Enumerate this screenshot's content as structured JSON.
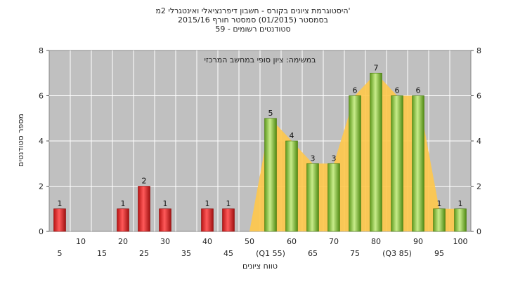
{
  "header": {
    "line1": "היסטוגרמת ציונים בקורס - חשבון דיפרנציאלי ואינטגרלי 2מ'",
    "line2": "בסמסטר  (01/2015)  סמסטר חורף  2015/16",
    "line3": "59 - סטודנטים רשומים"
  },
  "chart_data": {
    "type": "bar",
    "subtitle": "במשימה: ציון סופי במחשב המרכזי",
    "xlabel": "טווח ציונים",
    "ylabel": "מספר סטודנטים",
    "ylim": [
      0,
      8
    ],
    "yticks": [
      0,
      2,
      4,
      6,
      8
    ],
    "grid": true,
    "x_tick_labels_row1": [
      "10",
      "20",
      "30",
      "40",
      "50",
      "60",
      "70",
      "80",
      "90",
      "100"
    ],
    "x_tick_labels_row2": [
      "5",
      "15",
      "25",
      "35",
      "45",
      "(Q1 55)",
      "65",
      "75",
      "(Q3 85)",
      "95"
    ],
    "categories": [
      5,
      10,
      15,
      20,
      25,
      30,
      35,
      40,
      45,
      50,
      55,
      60,
      65,
      70,
      75,
      80,
      85,
      90,
      95,
      100
    ],
    "values": [
      1,
      0,
      0,
      1,
      2,
      1,
      0,
      1,
      1,
      0,
      5,
      4,
      3,
      3,
      6,
      7,
      6,
      6,
      1,
      1
    ],
    "pass_threshold": 55,
    "colors": {
      "fail": "#e02828",
      "pass": "#8dc63f",
      "area": "#ffc84a",
      "plot_bg": "#c0c0c0"
    }
  }
}
